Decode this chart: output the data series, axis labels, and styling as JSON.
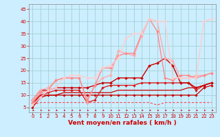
{
  "xlabel": "Vent moyen/en rafales ( km/h )",
  "xlim": [
    -0.5,
    23.5
  ],
  "ylim": [
    3,
    47
  ],
  "yticks": [
    5,
    10,
    15,
    20,
    25,
    30,
    35,
    40,
    45
  ],
  "xticks": [
    0,
    1,
    2,
    3,
    4,
    5,
    6,
    7,
    8,
    9,
    10,
    11,
    12,
    13,
    14,
    15,
    16,
    17,
    18,
    19,
    20,
    21,
    22,
    23
  ],
  "background_color": "#cceeff",
  "grid_color": "#99cccc",
  "lines": [
    {
      "x": [
        0,
        1,
        2,
        3,
        4,
        5,
        6,
        7,
        8,
        9,
        10,
        11,
        12,
        13,
        14,
        15,
        16,
        17,
        18,
        19,
        20,
        21,
        22,
        23
      ],
      "y": [
        6,
        7,
        7,
        7,
        7,
        7,
        7,
        7,
        7,
        7,
        7,
        7,
        7,
        7,
        7,
        7,
        6,
        7,
        7,
        7,
        7,
        7,
        7,
        7
      ],
      "color": "#ff4444",
      "lw": 0.8,
      "marker": null,
      "dashes": [
        3,
        2
      ]
    },
    {
      "x": [
        0,
        1,
        2,
        3,
        4,
        5,
        6,
        7,
        8,
        9,
        10,
        11,
        12,
        13,
        14,
        15,
        16,
        17,
        18,
        19,
        20,
        21,
        22,
        23
      ],
      "y": [
        5,
        9,
        10,
        10,
        10,
        10,
        10,
        10,
        10,
        10,
        10,
        10,
        10,
        10,
        10,
        10,
        10,
        10,
        10,
        10,
        10,
        10,
        13,
        14
      ],
      "color": "#cc0000",
      "lw": 0.9,
      "marker": "D",
      "markersize": 1.8,
      "dashes": []
    },
    {
      "x": [
        0,
        1,
        2,
        3,
        4,
        5,
        6,
        7,
        8,
        9,
        10,
        11,
        12,
        13,
        14,
        15,
        16,
        17,
        18,
        19,
        20,
        21,
        22,
        23
      ],
      "y": [
        6,
        10,
        10,
        10,
        11,
        11,
        11,
        11,
        11,
        11,
        11,
        12,
        12,
        12,
        12,
        12,
        12,
        12,
        12,
        12,
        13,
        13,
        14,
        15
      ],
      "color": "#cc0000",
      "lw": 0.9,
      "marker": null,
      "dashes": []
    },
    {
      "x": [
        0,
        1,
        2,
        3,
        4,
        5,
        6,
        7,
        8,
        9,
        10,
        11,
        12,
        13,
        14,
        15,
        16,
        17,
        18,
        19,
        20,
        21,
        22,
        23
      ],
      "y": [
        7,
        10,
        11,
        12,
        12,
        12,
        12,
        7,
        8,
        13,
        14,
        14,
        14,
        14,
        15,
        15,
        15,
        15,
        15,
        15,
        15,
        12,
        14,
        15
      ],
      "color": "#dd1111",
      "lw": 0.9,
      "marker": "D",
      "markersize": 1.8,
      "dashes": []
    },
    {
      "x": [
        0,
        1,
        2,
        3,
        4,
        5,
        6,
        7,
        8,
        9,
        10,
        11,
        12,
        13,
        14,
        15,
        16,
        17,
        18,
        19,
        20,
        21,
        22,
        23
      ],
      "y": [
        8,
        12,
        12,
        13,
        13,
        13,
        13,
        13,
        14,
        15,
        15,
        17,
        17,
        17,
        17,
        22,
        23,
        25,
        22,
        15,
        15,
        13,
        14,
        15
      ],
      "color": "#cc0000",
      "lw": 1.0,
      "marker": "D",
      "markersize": 2.0,
      "dashes": []
    },
    {
      "x": [
        0,
        1,
        2,
        3,
        4,
        5,
        6,
        7,
        8,
        9,
        10,
        11,
        12,
        13,
        14,
        15,
        16,
        17,
        18,
        19,
        20,
        21,
        22,
        23
      ],
      "y": [
        8,
        12,
        13,
        16,
        17,
        17,
        17,
        7,
        14,
        17,
        18,
        28,
        27,
        26,
        34,
        41,
        40,
        25,
        24,
        17,
        17,
        18,
        18,
        19
      ],
      "color": "#ffaaaa",
      "lw": 1.0,
      "marker": "D",
      "markersize": 2.0,
      "dashes": []
    },
    {
      "x": [
        0,
        1,
        2,
        3,
        4,
        5,
        6,
        7,
        8,
        9,
        10,
        11,
        12,
        13,
        14,
        15,
        16,
        17,
        18,
        19,
        20,
        21,
        22,
        23
      ],
      "y": [
        7,
        11,
        12,
        16,
        17,
        17,
        17,
        8,
        14,
        21,
        21,
        26,
        27,
        27,
        35,
        41,
        36,
        17,
        16,
        18,
        18,
        17,
        18,
        19
      ],
      "color": "#ff8888",
      "lw": 1.0,
      "marker": "D",
      "markersize": 2.0,
      "dashes": []
    },
    {
      "x": [
        0,
        1,
        2,
        3,
        4,
        5,
        6,
        7,
        8,
        9,
        10,
        11,
        12,
        13,
        14,
        15,
        16,
        17,
        18,
        19,
        20,
        21,
        22,
        23
      ],
      "y": [
        6,
        9,
        12,
        13,
        17,
        18,
        18,
        17,
        17,
        21,
        22,
        25,
        33,
        35,
        35,
        41,
        40,
        40,
        17,
        17,
        17,
        17,
        40,
        41
      ],
      "color": "#ffcccc",
      "lw": 1.0,
      "marker": "D",
      "markersize": 2.0,
      "dashes": []
    }
  ],
  "arrow_color": "#cc0000",
  "xlabel_fontsize": 6.5,
  "tick_fontsize": 5.0
}
